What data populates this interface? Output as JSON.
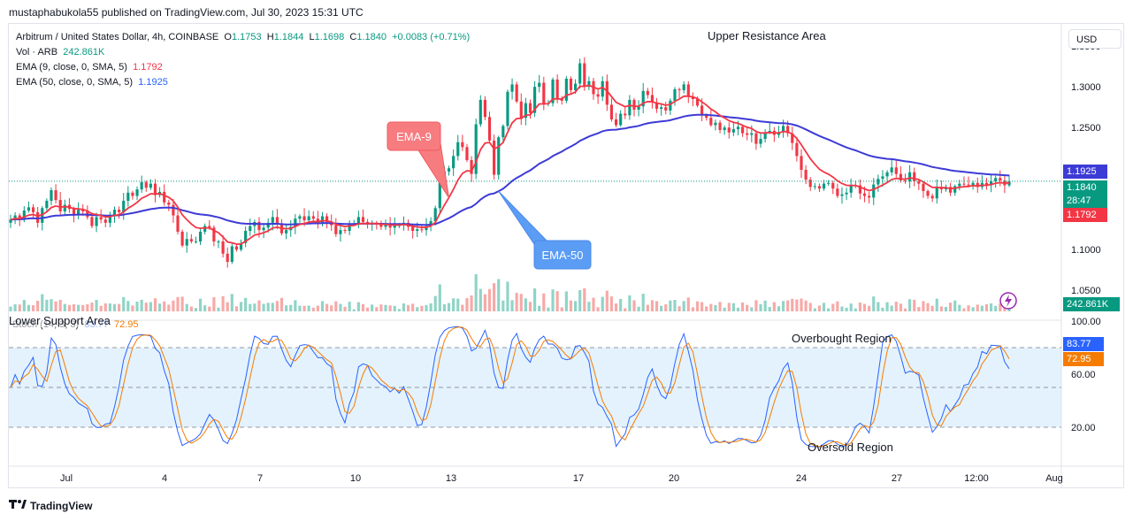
{
  "header": {
    "publish_text": "mustaphabukola55 published on TradingView.com, Jul 30, 2023 15:31 UTC"
  },
  "legend": {
    "symbol": "Arbitrum / United States Dollar, 4h, COINBASE",
    "open_label": "O",
    "open": "1.1753",
    "high_label": "H",
    "high": "1.1844",
    "low_label": "L",
    "low": "1.1698",
    "close_label": "C",
    "close": "1.1840",
    "change": "+0.0083 (+0.71%)",
    "vol_label": "Vol · ARB",
    "vol_value": "242.861K",
    "ema9_label": "EMA (9, close, 0, SMA, 5)",
    "ema9_value": "1.1792",
    "ema50_label": "EMA (50, close, 0, SMA, 5)",
    "ema50_value": "1.1925"
  },
  "currency_button": "USD",
  "annotations": {
    "upper_resistance": "Upper Resistance Area",
    "lower_support": "Lower Support Area",
    "ema9_callout": "EMA-9",
    "ema50_callout": "EMA-50",
    "overbought": "Overbought Region",
    "oversold": "Oversold Region"
  },
  "price_tags": {
    "ema50": "1.1925",
    "last": "1.1840",
    "countdown": "28:47",
    "ema9": "1.1792",
    "volume": "242.861K",
    "stoch_k": "83.77",
    "stoch_d": "72.95"
  },
  "stoch_legend": {
    "label": "Stoch (14, 3, 3)",
    "k": "83.77",
    "d": "72.95"
  },
  "brand": "TradingView",
  "colors": {
    "up": "#089981",
    "down": "#f23645",
    "ema9": "#f23645",
    "ema50": "#3d3bd6",
    "stoch_k": "#2962ff",
    "stoch_d": "#f57c00",
    "band": "#e3f2fd"
  },
  "chart_data": [
    {
      "type": "candlestick",
      "title": "Arbitrum / United States Dollar, 4h, COINBASE",
      "price_axis": {
        "ticks": [
          "1.3500",
          "1.3000",
          "1.2500",
          "1.1000",
          "1.0500"
        ],
        "ylim": [
          1.035,
          1.36
        ]
      },
      "x_axis": {
        "ticks": [
          "Jul",
          "4",
          "7",
          "10",
          "13",
          "17",
          "20",
          "24",
          "27",
          "12:00",
          "Aug"
        ]
      },
      "note": "close prices per bar, read approximately off the chart",
      "close": [
        1.137,
        1.142,
        1.138,
        1.148,
        1.152,
        1.146,
        1.133,
        1.151,
        1.16,
        1.173,
        1.161,
        1.147,
        1.155,
        1.15,
        1.143,
        1.149,
        1.147,
        1.14,
        1.129,
        1.14,
        1.137,
        1.133,
        1.141,
        1.149,
        1.146,
        1.16,
        1.17,
        1.166,
        1.174,
        1.183,
        1.176,
        1.181,
        1.167,
        1.171,
        1.158,
        1.155,
        1.142,
        1.122,
        1.105,
        1.113,
        1.11,
        1.11,
        1.122,
        1.129,
        1.127,
        1.11,
        1.11,
        1.095,
        1.085,
        1.104,
        1.1,
        1.108,
        1.123,
        1.129,
        1.134,
        1.124,
        1.127,
        1.133,
        1.14,
        1.132,
        1.12,
        1.124,
        1.128,
        1.138,
        1.141,
        1.136,
        1.141,
        1.138,
        1.132,
        1.141,
        1.134,
        1.13,
        1.119,
        1.124,
        1.123,
        1.132,
        1.132,
        1.14,
        1.134,
        1.131,
        1.133,
        1.131,
        1.128,
        1.131,
        1.127,
        1.13,
        1.13,
        1.133,
        1.128,
        1.123,
        1.125,
        1.124,
        1.129,
        1.135,
        1.151,
        1.188,
        1.196,
        1.2,
        1.215,
        1.232,
        1.226,
        1.21,
        1.193,
        1.254,
        1.284,
        1.263,
        1.234,
        1.192,
        1.238,
        1.252,
        1.294,
        1.303,
        1.282,
        1.262,
        1.28,
        1.268,
        1.3,
        1.305,
        1.279,
        1.28,
        1.309,
        1.286,
        1.283,
        1.31,
        1.296,
        1.304,
        1.329,
        1.3,
        1.307,
        1.291,
        1.288,
        1.307,
        1.278,
        1.26,
        1.253,
        1.267,
        1.265,
        1.284,
        1.272,
        1.276,
        1.295,
        1.29,
        1.281,
        1.273,
        1.275,
        1.271,
        1.283,
        1.297,
        1.296,
        1.303,
        1.288,
        1.285,
        1.277,
        1.265,
        1.262,
        1.253,
        1.256,
        1.247,
        1.25,
        1.244,
        1.248,
        1.251,
        1.243,
        1.241,
        1.243,
        1.23,
        1.236,
        1.244,
        1.246,
        1.241,
        1.244,
        1.252,
        1.243,
        1.231,
        1.215,
        1.198,
        1.186,
        1.177,
        1.178,
        1.175,
        1.181,
        1.182,
        1.175,
        1.166,
        1.168,
        1.17,
        1.178,
        1.179,
        1.169,
        1.166,
        1.164,
        1.18,
        1.187,
        1.19,
        1.195,
        1.201,
        1.193,
        1.185,
        1.184,
        1.195,
        1.184,
        1.181,
        1.172,
        1.166,
        1.163,
        1.177,
        1.174,
        1.177,
        1.17,
        1.178,
        1.181,
        1.18,
        1.179,
        1.182,
        1.177,
        1.182,
        1.179,
        1.184,
        1.188,
        1.185,
        1.179,
        1.184
      ],
      "series": [
        {
          "name": "EMA (9, close, 0, SMA, 5)",
          "last": 1.1792
        },
        {
          "name": "EMA (50, close, 0, SMA, 5)",
          "last": 1.1925
        },
        {
          "name": "Vol · ARB",
          "last": "242.861K"
        }
      ]
    },
    {
      "type": "line",
      "title": "Stoch (14, 3, 3)",
      "y_axis": {
        "ticks": [
          "100.00",
          "60.00",
          "20.00"
        ],
        "ylim": [
          -30,
          105
        ]
      },
      "levels": [
        80,
        50,
        20
      ],
      "series": [
        {
          "name": "%K",
          "last": 83.77
        },
        {
          "name": "%D",
          "last": 72.95
        }
      ]
    }
  ]
}
